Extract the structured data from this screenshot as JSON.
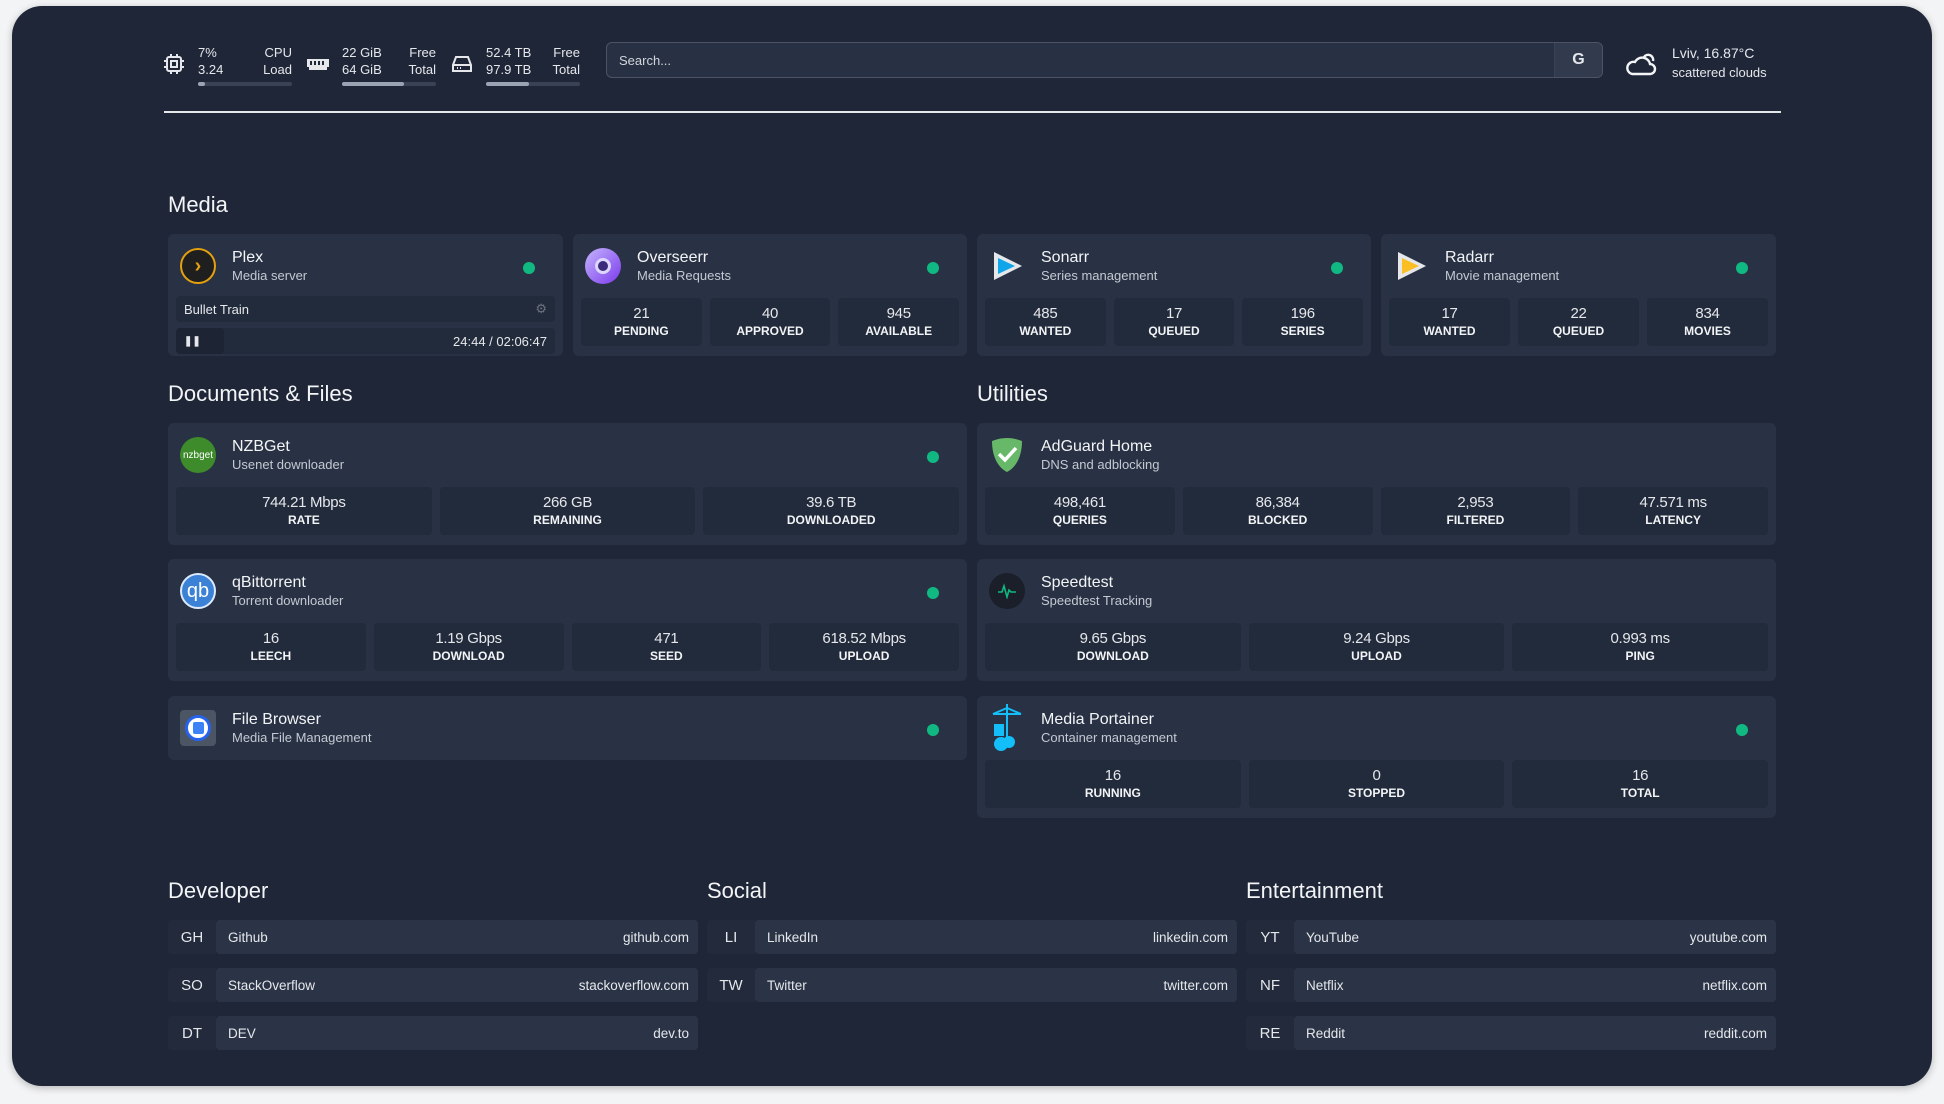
{
  "header": {
    "cpu": {
      "icon": "cpu-icon",
      "value": "7%",
      "load": "3.24",
      "label1": "CPU",
      "label2": "Load",
      "percent": 7
    },
    "memory": {
      "icon": "memory-icon",
      "free": "22 GiB",
      "total": "64 GiB",
      "label1": "Free",
      "label2": "Total",
      "percent": 66
    },
    "disk": {
      "icon": "disk-icon",
      "free": "52.4 TB",
      "total": "97.9 TB",
      "label1": "Free",
      "label2": "Total",
      "percent": 46
    },
    "search": {
      "placeholder": "Search...",
      "engine_button": "G"
    },
    "weather": {
      "icon": "cloud-icon",
      "location": "Lviv, 16.87°C",
      "condition": "scattered clouds"
    }
  },
  "sections": {
    "media": "Media",
    "docs": "Documents & Files",
    "utilities": "Utilities",
    "developer": "Developer",
    "social": "Social",
    "entertainment": "Entertainment"
  },
  "status_color": "#10b981",
  "media": [
    {
      "name": "Plex",
      "desc": "Media server",
      "now_playing": {
        "title": "Bullet Train",
        "time": "24:44 / 02:06:47",
        "state": "paused"
      }
    },
    {
      "name": "Overseerr",
      "desc": "Media Requests",
      "stats": [
        {
          "v": "21",
          "k": "PENDING"
        },
        {
          "v": "40",
          "k": "APPROVED"
        },
        {
          "v": "945",
          "k": "AVAILABLE"
        }
      ]
    },
    {
      "name": "Sonarr",
      "desc": "Series management",
      "stats": [
        {
          "v": "485",
          "k": "WANTED"
        },
        {
          "v": "17",
          "k": "QUEUED"
        },
        {
          "v": "196",
          "k": "SERIES"
        }
      ]
    },
    {
      "name": "Radarr",
      "desc": "Movie management",
      "stats": [
        {
          "v": "17",
          "k": "WANTED"
        },
        {
          "v": "22",
          "k": "QUEUED"
        },
        {
          "v": "834",
          "k": "MOVIES"
        }
      ]
    }
  ],
  "docs": [
    {
      "name": "NZBGet",
      "desc": "Usenet downloader",
      "logo_text": "nzbget",
      "stats": [
        {
          "v": "744.21 Mbps",
          "k": "RATE"
        },
        {
          "v": "266 GB",
          "k": "REMAINING"
        },
        {
          "v": "39.6 TB",
          "k": "DOWNLOADED"
        }
      ]
    },
    {
      "name": "qBittorrent",
      "desc": "Torrent downloader",
      "logo_text": "qb",
      "stats": [
        {
          "v": "16",
          "k": "LEECH"
        },
        {
          "v": "1.19 Gbps",
          "k": "DOWNLOAD"
        },
        {
          "v": "471",
          "k": "SEED"
        },
        {
          "v": "618.52 Mbps",
          "k": "UPLOAD"
        }
      ]
    },
    {
      "name": "File Browser",
      "desc": "Media File Management"
    }
  ],
  "utilities": [
    {
      "name": "AdGuard Home",
      "desc": "DNS and adblocking",
      "stats": [
        {
          "v": "498,461",
          "k": "QUERIES"
        },
        {
          "v": "86,384",
          "k": "BLOCKED"
        },
        {
          "v": "2,953",
          "k": "FILTERED"
        },
        {
          "v": "47.571 ms",
          "k": "LATENCY"
        }
      ]
    },
    {
      "name": "Speedtest",
      "desc": "Speedtest Tracking",
      "stats": [
        {
          "v": "9.65 Gbps",
          "k": "DOWNLOAD"
        },
        {
          "v": "9.24 Gbps",
          "k": "UPLOAD"
        },
        {
          "v": "0.993 ms",
          "k": "PING"
        }
      ]
    },
    {
      "name": "Media Portainer",
      "desc": "Container management",
      "stats": [
        {
          "v": "16",
          "k": "RUNNING"
        },
        {
          "v": "0",
          "k": "STOPPED"
        },
        {
          "v": "16",
          "k": "TOTAL"
        }
      ]
    }
  ],
  "bookmarks": {
    "developer": [
      {
        "abbr": "GH",
        "name": "Github",
        "url": "github.com"
      },
      {
        "abbr": "SO",
        "name": "StackOverflow",
        "url": "stackoverflow.com"
      },
      {
        "abbr": "DT",
        "name": "DEV",
        "url": "dev.to"
      }
    ],
    "social": [
      {
        "abbr": "LI",
        "name": "LinkedIn",
        "url": "linkedin.com"
      },
      {
        "abbr": "TW",
        "name": "Twitter",
        "url": "twitter.com"
      }
    ],
    "entertainment": [
      {
        "abbr": "YT",
        "name": "YouTube",
        "url": "youtube.com"
      },
      {
        "abbr": "NF",
        "name": "Netflix",
        "url": "netflix.com"
      },
      {
        "abbr": "RE",
        "name": "Reddit",
        "url": "reddit.com"
      }
    ]
  }
}
